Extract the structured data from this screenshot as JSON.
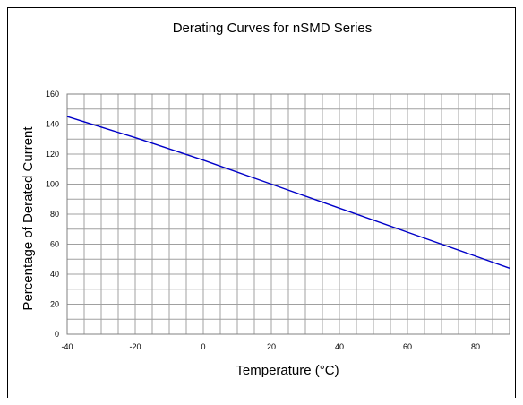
{
  "chart_data": {
    "type": "line",
    "title": "Derating Curves for nSMD Series",
    "xlabel": "Temperature (°C)",
    "ylabel": "Percentage of Derated Current",
    "xlim": [
      -40,
      90
    ],
    "ylim": [
      0,
      160
    ],
    "x_ticks": [
      -40,
      -20,
      0,
      20,
      40,
      60,
      80
    ],
    "y_ticks": [
      0,
      20,
      40,
      60,
      80,
      100,
      120,
      140,
      160
    ],
    "x_minor_step": 5,
    "y_minor_step": 10,
    "grid": true,
    "legend": "none",
    "series": [
      {
        "color": "#0000c8",
        "x": [
          -40,
          -20,
          0,
          20,
          40,
          60,
          80,
          90
        ],
        "y": [
          145,
          131,
          116,
          100,
          84,
          68,
          52,
          44
        ]
      }
    ]
  },
  "colors": {
    "grid": "#a0a0a0",
    "plot_border": "#808080"
  }
}
